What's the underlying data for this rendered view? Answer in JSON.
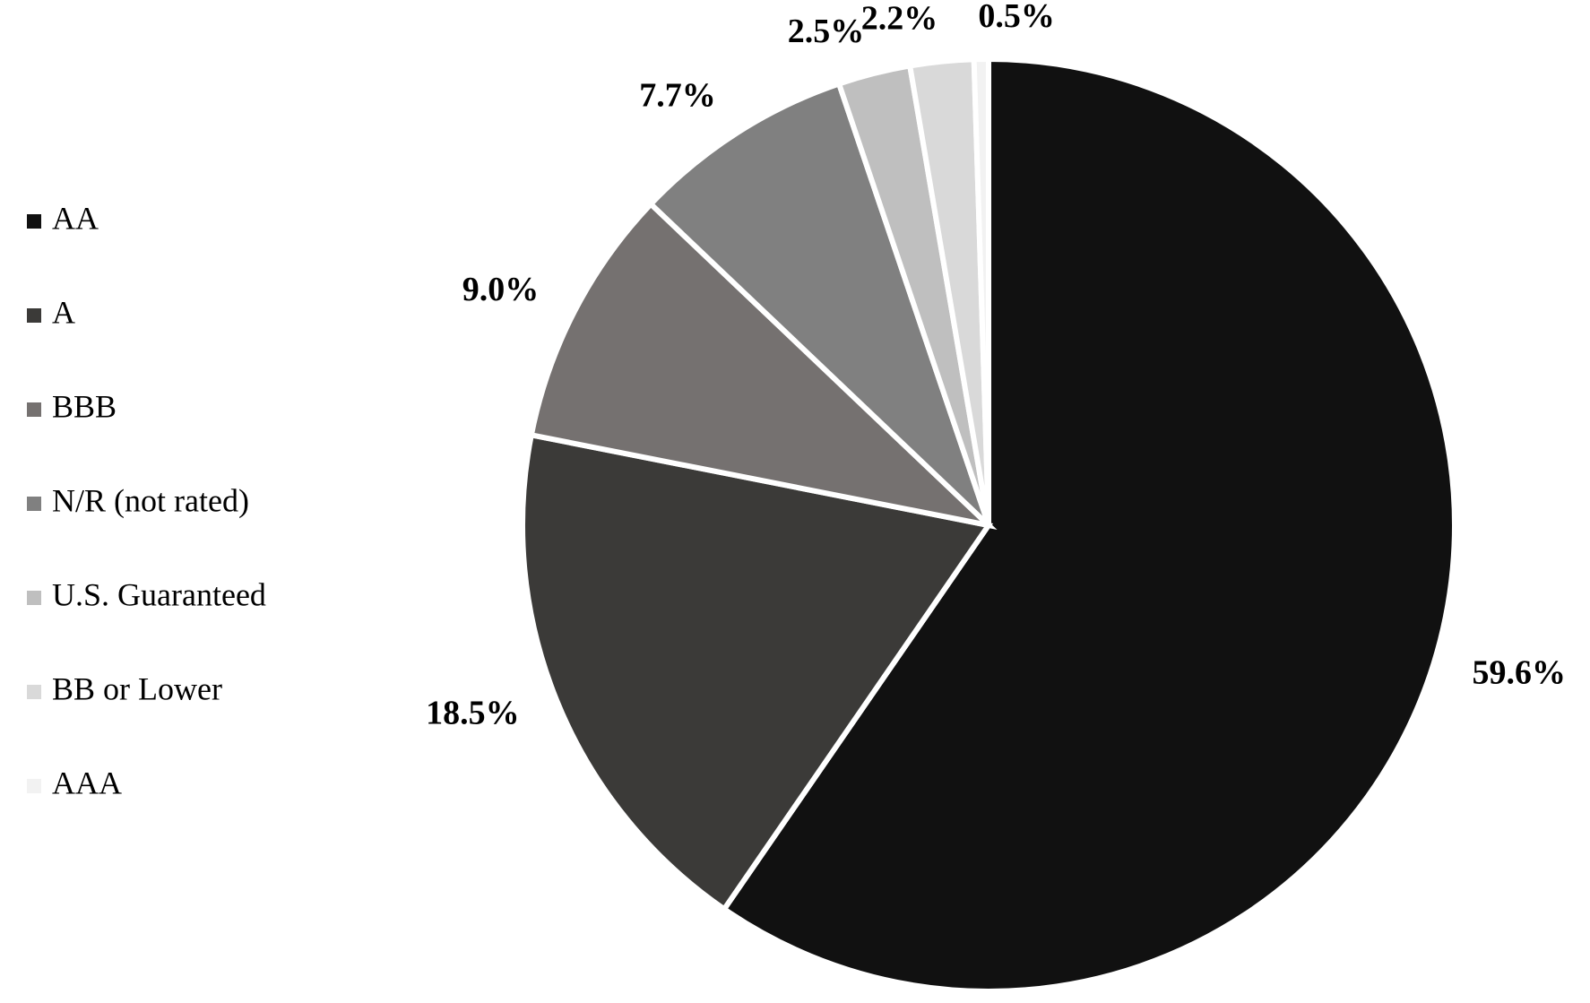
{
  "chart_data": {
    "type": "pie",
    "categories": [
      "AA",
      "A",
      "BBB",
      "N/R (not rated)",
      "U.S. Guaranteed",
      "BB or Lower",
      "AAA"
    ],
    "values": [
      59.6,
      18.5,
      9.0,
      7.7,
      2.5,
      2.2,
      0.5
    ],
    "value_labels": [
      "59.6%",
      "18.5%",
      "9.0%",
      "7.7%",
      "2.5%",
      "2.2%",
      "0.5%"
    ],
    "colors": [
      "#111111",
      "#3b3a38",
      "#757170",
      "#808080",
      "#bfbfbf",
      "#d9d9d9",
      "#f2f2f2"
    ]
  }
}
